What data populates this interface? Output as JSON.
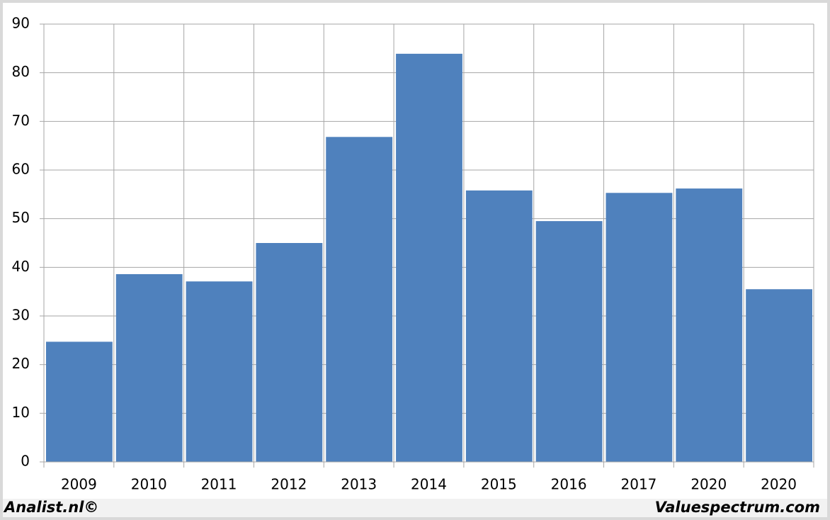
{
  "chart_data": {
    "type": "bar",
    "categories": [
      "2009",
      "2010",
      "2011",
      "2012",
      "2013",
      "2014",
      "2015",
      "2016",
      "2017",
      "2020",
      "2020"
    ],
    "values": [
      24.7,
      38.6,
      37.1,
      45,
      66.8,
      83.9,
      55.8,
      49.5,
      55.3,
      56.2,
      35.5
    ],
    "color": "#4f81bd",
    "ylim": [
      0,
      90
    ],
    "yticks": [
      0,
      10,
      20,
      30,
      40,
      50,
      60,
      70,
      80,
      90
    ],
    "grid": true,
    "annotations": [
      "Analist.nl©",
      "Valuespectrum.com"
    ]
  }
}
